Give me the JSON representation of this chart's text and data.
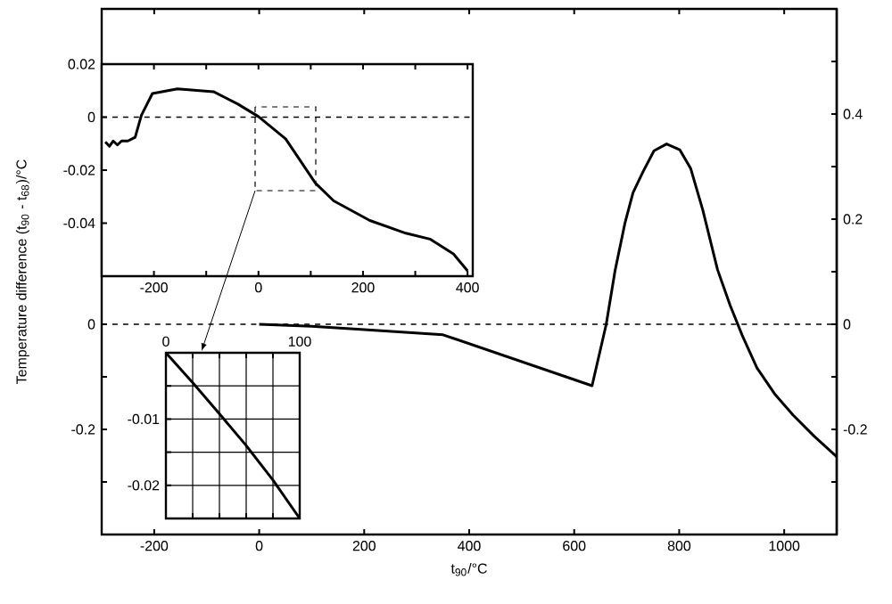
{
  "chart_data": [
    {
      "type": "line",
      "xlabel": "t$_{90}$/°C",
      "ylabel": "Temperature difference (t$_{90}$ - t$_{68}$)/°C",
      "xlim": [
        -300,
        1100
      ],
      "xticks": [
        -200,
        0,
        200,
        400,
        600,
        800,
        1000
      ],
      "ylim": [
        -0.4,
        0.6
      ],
      "yticks": [
        {
          "value": -0.3,
          "label": null
        },
        -0.2,
        {
          "value": -0.1,
          "label": null
        },
        0
      ],
      "y2lim": [
        -0.4,
        0.6
      ],
      "y2ticks": [
        {
          "value": -0.3,
          "label": null
        },
        -0.2,
        {
          "value": -0.1,
          "label": null
        },
        0,
        {
          "value": 0.1,
          "label": null
        },
        0.2,
        {
          "value": 0.3,
          "label": null
        },
        0.4,
        {
          "value": 0.5,
          "label": null
        }
      ],
      "ref_lines": [
        {
          "axis": "y",
          "value": 0,
          "line_style": "dashed"
        }
      ],
      "series": [
        {
          "color": "#000000",
          "x": [
            0,
            100,
            200,
            350,
            634,
            661,
            678,
            697,
            712,
            731,
            752,
            776,
            801,
            822,
            845,
            873,
            897,
            920,
            948,
            983,
            1017,
            1057,
            1100
          ],
          "values": [
            0,
            -0.004,
            -0.01,
            -0.02,
            -0.117,
            0,
            0.103,
            0.194,
            0.25,
            0.29,
            0.33,
            0.343,
            0.332,
            0.296,
            0.217,
            0.104,
            0.036,
            -0.021,
            -0.083,
            -0.134,
            -0.173,
            -0.213,
            -0.252
          ]
        }
      ]
    },
    {
      "type": "line",
      "xlim": [
        -300,
        410
      ],
      "xticks": [
        -200,
        {
          "value": -100,
          "label": null
        },
        0,
        {
          "value": 100,
          "label": null
        },
        200,
        {
          "value": 300,
          "label": null
        },
        400
      ],
      "ylim": [
        -0.06,
        0.02
      ],
      "yticks": [
        -0.04,
        -0.02,
        0,
        0.02
      ],
      "ref_lines": [
        {
          "axis": "y",
          "value": 0,
          "line_style": "dashed"
        }
      ],
      "series": [
        {
          "color": "#000000",
          "x": [
            -293,
            -285,
            -278,
            -270,
            -262,
            -250,
            -236,
            -224,
            -203,
            -155,
            -86,
            -40,
            0,
            52,
            109,
            144,
            213,
            282,
            328,
            373,
            400
          ],
          "values": [
            -0.0093,
            -0.011,
            -0.009,
            -0.0105,
            -0.009,
            -0.009,
            -0.0076,
            0.0007,
            0.0089,
            0.0107,
            0.0096,
            0.005,
            0.0002,
            -0.0082,
            -0.0249,
            -0.0316,
            -0.039,
            -0.0438,
            -0.046,
            -0.0516,
            -0.058
          ]
        }
      ]
    },
    {
      "type": "line",
      "xlim": [
        0,
        100
      ],
      "xticks": [
        0,
        {
          "value": 20,
          "label": null
        },
        {
          "value": 40,
          "label": null
        },
        {
          "value": 60,
          "label": null
        },
        {
          "value": 80,
          "label": null
        },
        100
      ],
      "ylim": [
        -0.025,
        0
      ],
      "yticks": [
        {
          "value": -0.025,
          "label": null
        },
        -0.02,
        {
          "value": -0.015,
          "label": null
        },
        -0.01,
        {
          "value": -0.005,
          "label": null
        },
        {
          "value": 0,
          "label": null
        }
      ],
      "grid": true,
      "series": [
        {
          "color": "#000000",
          "x": [
            0,
            20,
            40,
            60,
            80,
            100
          ],
          "values": [
            0,
            -0.0045,
            -0.0092,
            -0.014,
            -0.0192,
            -0.025
          ]
        }
      ]
    }
  ]
}
